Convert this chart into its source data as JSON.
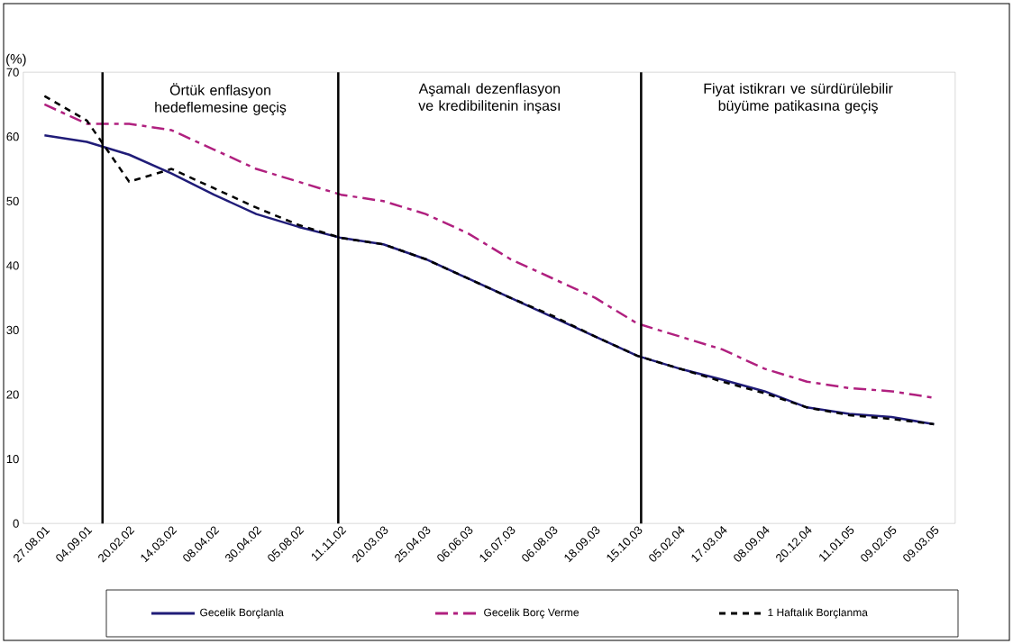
{
  "chart_data": {
    "type": "line",
    "ylabel": "(%)",
    "categories": [
      "27.08.01",
      "04.09.01",
      "20.02.02",
      "14.03.02",
      "08.04.02",
      "30.04.02",
      "05.08.02",
      "11.11.02",
      "20.03.03",
      "25.04.03",
      "06.06.03",
      "16.07.03",
      "06.08.03",
      "18.09.03",
      "15.10.03",
      "05.02.04",
      "17.03.04",
      "08.09.04",
      "20.12.04",
      "11.01.05",
      "09.02.05",
      "09.03.05"
    ],
    "series": [
      {
        "name": "Gecelik Borçlanla",
        "color": "#201c78",
        "line_style": "solid",
        "values": [
          60.2,
          59.2,
          57.2,
          54.3,
          51,
          48,
          46,
          44.3,
          43.3,
          41,
          38,
          35,
          32,
          29,
          26,
          24,
          22.3,
          20.5,
          18,
          17,
          16.5,
          15.4
        ]
      },
      {
        "name": "Gecelik Borç Verme",
        "color": "#b0207f",
        "line_style": "dashed",
        "values": [
          65,
          62,
          62,
          61,
          58,
          55,
          53,
          51,
          50,
          48,
          45,
          41,
          38,
          35,
          31,
          29,
          27,
          24,
          22,
          21,
          20.5,
          19.5
        ]
      },
      {
        "name": "1 Haftalık Borçlanma",
        "color": "#000000",
        "line_style": "dotted",
        "values": [
          66.3,
          62.5,
          53,
          55,
          52,
          49,
          46.3,
          44.3,
          43.3,
          41,
          38,
          35,
          32.2,
          29,
          26,
          24,
          22,
          20.2,
          18,
          16.8,
          16.2,
          15.4
        ]
      }
    ],
    "ylim": [
      0,
      70
    ],
    "yticks": [
      0,
      10,
      20,
      30,
      40,
      50,
      60,
      70
    ],
    "annotations": [
      "Örtük enflasyon hedeflemesine geçiş",
      "Aşamalı dezenflasyon ve kredibilitenin inşası",
      "Fiyat istikrarı ve sürdürülebilir büyüme patikasına geçiş"
    ],
    "grid": false,
    "legend": "bottom",
    "marker": "none"
  }
}
